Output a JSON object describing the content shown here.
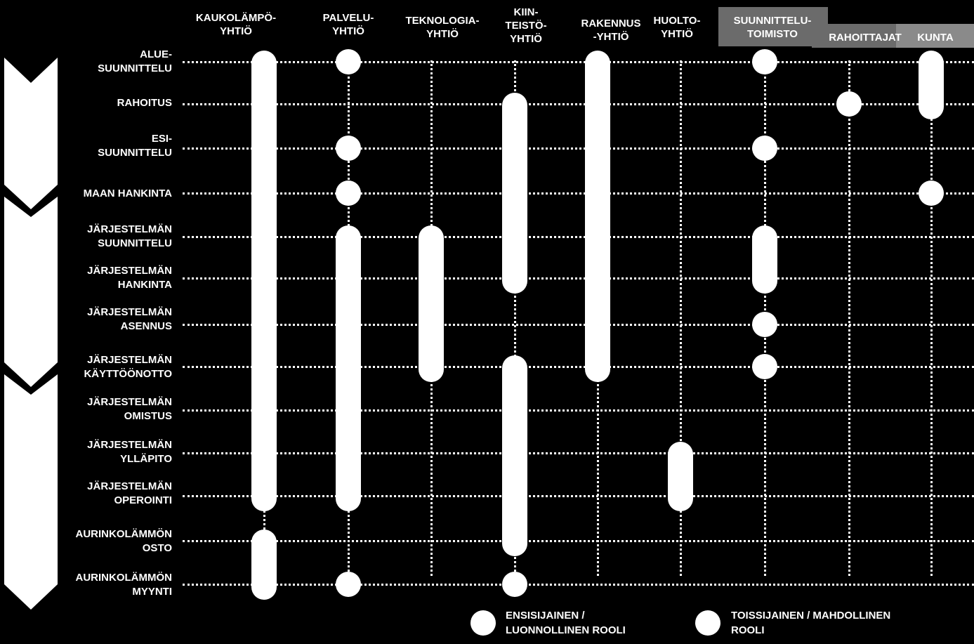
{
  "columns": [
    {
      "key": "kaukolampo",
      "label": "KAUKOLÄMPÖ-\nYHTIÖ"
    },
    {
      "key": "palvelu",
      "label": "PALVELU-\nYHTIÖ"
    },
    {
      "key": "teknologia",
      "label": "TEKNOLOGIA-\nYHTIÖ"
    },
    {
      "key": "kiinteisto",
      "label": "KIIN-\nTEISTÖ-\nYHTIÖ"
    },
    {
      "key": "rakennus",
      "label": "RAKENNUS\n-YHTIÖ"
    },
    {
      "key": "huolto",
      "label": "HUOLTO-\nYHTIÖ"
    },
    {
      "key": "suunnittelu",
      "label": "SUUNNITTELU-\nTOIMISTO"
    },
    {
      "key": "rahoittajat",
      "label": "RAHOITTAJAT"
    },
    {
      "key": "kunta",
      "label": "KUNTA"
    }
  ],
  "rows": [
    {
      "key": "aluesuunnittelu",
      "label": "ALUE-\nSUUNNITTELU"
    },
    {
      "key": "rahoitus",
      "label": "RAHOITUS"
    },
    {
      "key": "esisuunnittelu",
      "label": "ESI-\nSUUNNITTELU"
    },
    {
      "key": "maan_hankinta",
      "label": "MAAN HANKINTA"
    },
    {
      "key": "jarj_suunnittelu",
      "label": "JÄRJESTELMÄN\nSUUNNITTELU"
    },
    {
      "key": "jarj_hankinta",
      "label": "JÄRJESTELMÄN\nHANKINTA"
    },
    {
      "key": "jarj_asennus",
      "label": "JÄRJESTELMÄN\nASENNUS"
    },
    {
      "key": "jarj_kayttoonotto",
      "label": "JÄRJESTELMÄN\nKÄYTTÖÖNOTTO"
    },
    {
      "key": "jarj_omistus",
      "label": "JÄRJESTELMÄN\nOMISTUS"
    },
    {
      "key": "jarj_yllapito",
      "label": "JÄRJESTELMÄN\nYLLÄPITO"
    },
    {
      "key": "jarj_operointi",
      "label": "JÄRJESTELMÄN\nOPEROINTI"
    },
    {
      "key": "aurinko_osto",
      "label": "AURINKOLÄMMÖN\nOSTO"
    },
    {
      "key": "aurinko_myynti",
      "label": "AURINKOLÄMMÖN\nMYYNTI"
    }
  ],
  "roles": [
    {
      "column": "kaukolampo",
      "from_row": 0,
      "to_row": 10
    },
    {
      "column": "kaukolampo",
      "from_row": 11,
      "to_row": 12
    },
    {
      "column": "palvelu",
      "from_row": 0,
      "to_row": 0
    },
    {
      "column": "palvelu",
      "from_row": 2,
      "to_row": 2
    },
    {
      "column": "palvelu",
      "from_row": 3,
      "to_row": 3
    },
    {
      "column": "palvelu",
      "from_row": 4,
      "to_row": 10
    },
    {
      "column": "palvelu",
      "from_row": 12,
      "to_row": 12
    },
    {
      "column": "teknologia",
      "from_row": 4,
      "to_row": 7
    },
    {
      "column": "kiinteisto",
      "from_row": 1,
      "to_row": 5
    },
    {
      "column": "kiinteisto",
      "from_row": 7,
      "to_row": 11
    },
    {
      "column": "kiinteisto",
      "from_row": 12,
      "to_row": 12
    },
    {
      "column": "rakennus",
      "from_row": 0,
      "to_row": 7
    },
    {
      "column": "huolto",
      "from_row": 9,
      "to_row": 10
    },
    {
      "column": "suunnittelu",
      "from_row": 0,
      "to_row": 0
    },
    {
      "column": "suunnittelu",
      "from_row": 2,
      "to_row": 2
    },
    {
      "column": "suunnittelu",
      "from_row": 4,
      "to_row": 5
    },
    {
      "column": "suunnittelu",
      "from_row": 6,
      "to_row": 6
    },
    {
      "column": "suunnittelu",
      "from_row": 7,
      "to_row": 7
    },
    {
      "column": "rahoittajat",
      "from_row": 1,
      "to_row": 1
    },
    {
      "column": "kunta",
      "from_row": 0,
      "to_row": 1
    },
    {
      "column": "kunta",
      "from_row": 3,
      "to_row": 3
    }
  ],
  "legend": {
    "primary": "ENSISIJAINEN  /\nLUONNOLLINEN ROOLI",
    "secondary": "TOISSIJAINEN  / MAHDOLLINEN\nROOLI"
  }
}
